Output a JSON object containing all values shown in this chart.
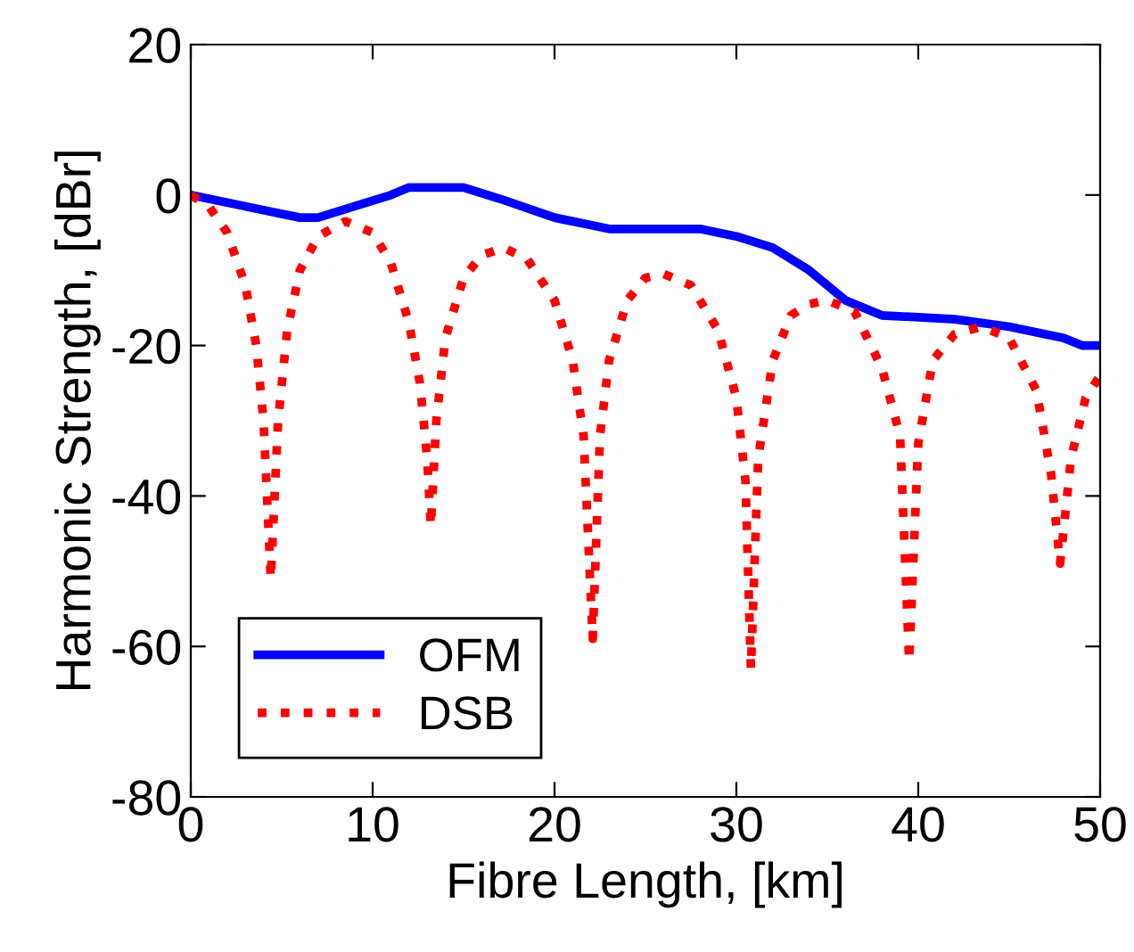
{
  "chart_data": {
    "type": "line",
    "xlabel": "Fibre Length, [km]",
    "ylabel": "Harmonic Strength, [dBr]",
    "xlim": [
      0,
      50
    ],
    "ylim": [
      -80,
      20
    ],
    "xticks": [
      0,
      10,
      20,
      30,
      40,
      50
    ],
    "yticks": [
      -80,
      -60,
      -40,
      -20,
      0,
      20
    ],
    "grid": false,
    "legend": "bottom left",
    "series": [
      {
        "name": "OFM",
        "color": "#0000ff",
        "line_style": "solid",
        "x": [
          0,
          2,
          4,
          6,
          7,
          9,
          11,
          12,
          15,
          17,
          20,
          22,
          23,
          28,
          30,
          32,
          34,
          36,
          38,
          42,
          45,
          48,
          49,
          50
        ],
        "values": [
          0,
          -1,
          -2,
          -3,
          -3,
          -1.5,
          0,
          1,
          1,
          -0.5,
          -3,
          -4,
          -4.5,
          -4.5,
          -5.5,
          -7,
          -10,
          -14,
          -16,
          -16.5,
          -17.5,
          -19,
          -20,
          -20
        ]
      },
      {
        "name": "DSB",
        "color": "#ff0000",
        "line_style": "dotted",
        "x": [
          0,
          1,
          2,
          3,
          3.6,
          4.0,
          4.4,
          4.8,
          5.3,
          6,
          7,
          8.5,
          10,
          11,
          12,
          12.6,
          13.0,
          13.2,
          13.5,
          14,
          15,
          16,
          17.2,
          18.5,
          20,
          21,
          21.6,
          22.1,
          22.5,
          23,
          24,
          25,
          26,
          27.5,
          29,
          30,
          30.5,
          30.8,
          31.2,
          32,
          33,
          34,
          35,
          36.5,
          38,
          39,
          39.5,
          40,
          40.8,
          42,
          43.5,
          45,
          46.5,
          47.3,
          47.8,
          48.4,
          49.2,
          50
        ],
        "values": [
          0,
          -1.5,
          -5,
          -12,
          -20,
          -30,
          -51,
          -30,
          -18,
          -10,
          -5.5,
          -3.5,
          -5,
          -9,
          -17,
          -25,
          -35,
          -44,
          -30,
          -19,
          -11,
          -8,
          -7,
          -8.5,
          -14,
          -22,
          -32,
          -59,
          -32,
          -22,
          -14,
          -11,
          -10.5,
          -12,
          -18,
          -27,
          -38,
          -63,
          -35,
          -22,
          -16,
          -14.5,
          -14,
          -15.5,
          -23,
          -32,
          -62,
          -33,
          -22,
          -18.5,
          -17.5,
          -19,
          -26,
          -37,
          -49,
          -35,
          -27,
          -24
        ]
      }
    ]
  }
}
